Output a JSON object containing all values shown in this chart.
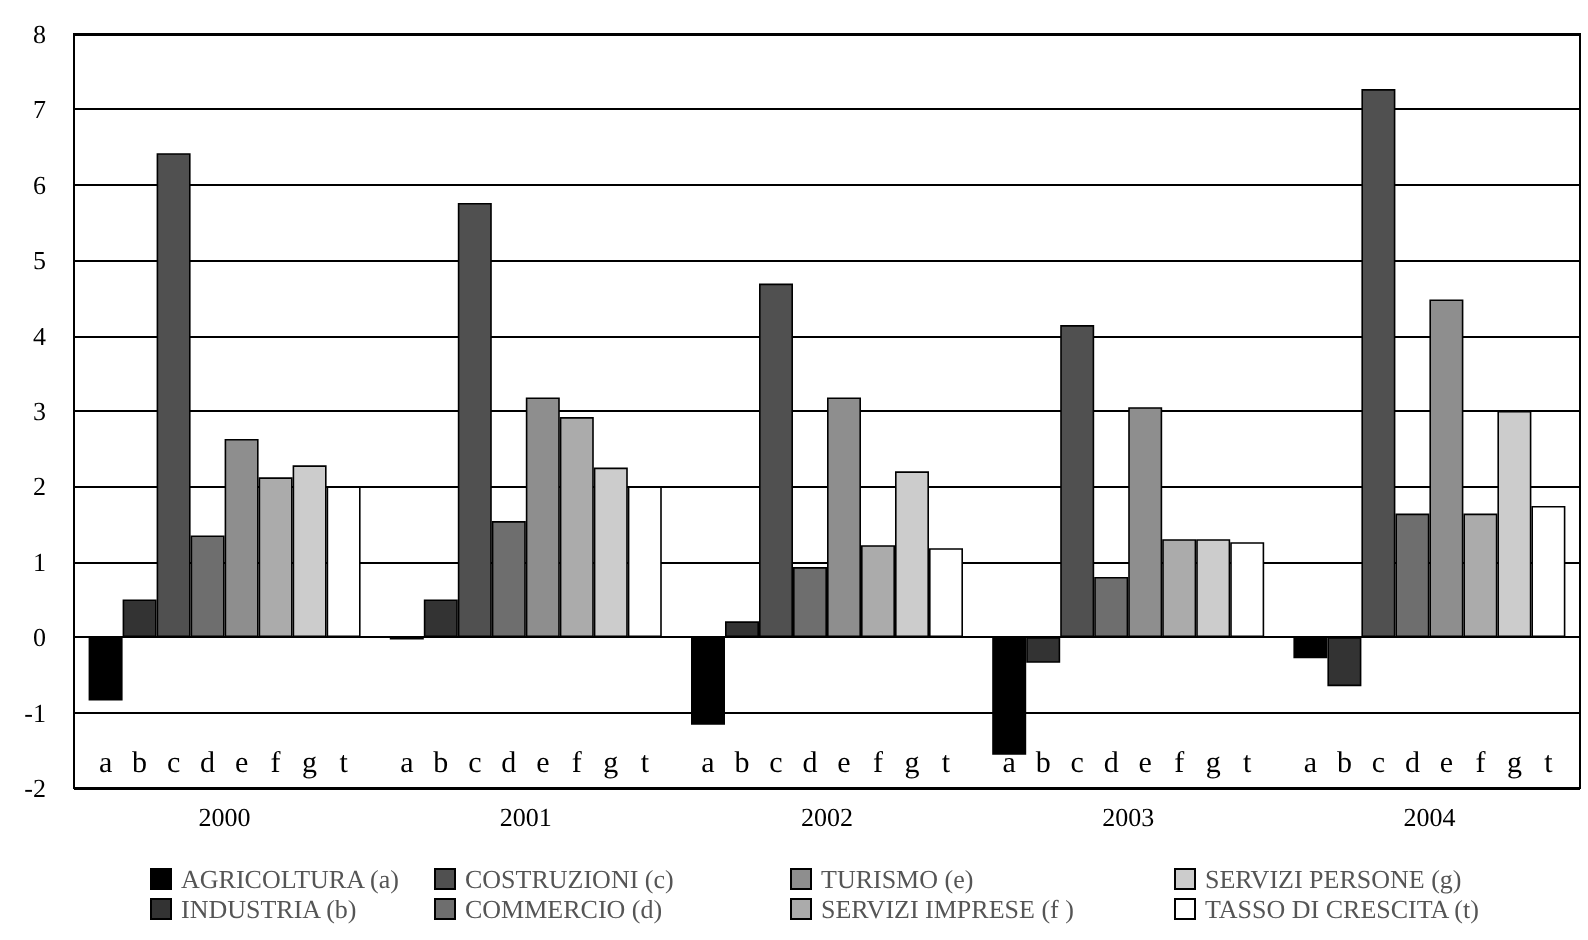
{
  "chart_data": {
    "type": "bar",
    "categories": [
      "2000",
      "2001",
      "2002",
      "2003",
      "2004"
    ],
    "series": [
      {
        "name": "AGRICOLTURA (a)",
        "color": "#000000",
        "values": [
          -0.84,
          -0.03,
          -1.16,
          -1.56,
          -0.28
        ]
      },
      {
        "name": "INDUSTRIA (b)",
        "color": "#333333",
        "values": [
          0.5,
          0.5,
          0.21,
          -0.34,
          -0.65
        ]
      },
      {
        "name": "COSTRUZIONI (c)",
        "color": "#505050",
        "values": [
          6.42,
          5.76,
          4.69,
          4.14,
          7.27
        ]
      },
      {
        "name": "COMMERCIO (d)",
        "color": "#6e6e6e",
        "values": [
          1.35,
          1.54,
          0.93,
          0.8,
          1.64
        ]
      },
      {
        "name": "TURISMO (e)",
        "color": "#8e8e8e",
        "values": [
          2.63,
          3.18,
          3.18,
          3.05,
          4.48
        ]
      },
      {
        "name": "SERVIZI IMPRESE (f )",
        "color": "#ababab",
        "values": [
          2.12,
          2.92,
          1.22,
          1.3,
          1.64
        ]
      },
      {
        "name": "SERVIZI PERSONE (g)",
        "color": "#cccccc",
        "values": [
          2.28,
          2.25,
          2.2,
          1.3,
          3.0
        ]
      },
      {
        "name": "TASSO DI CRESCITA (t)",
        "color": "#ffffff",
        "values": [
          2.0,
          2.0,
          1.18,
          1.26,
          1.74
        ]
      }
    ],
    "ylim": [
      -2,
      8
    ],
    "yticks": [
      -2,
      -1,
      0,
      1,
      2,
      3,
      4,
      5,
      6,
      7,
      8
    ],
    "grid": "y",
    "legend": "bottom",
    "annotations": [
      "a",
      "b",
      "c",
      "d",
      "e",
      "f",
      "g",
      "t",
      "a",
      "b",
      "c",
      "d",
      "e",
      "f",
      "g",
      "t",
      "a",
      "b",
      "c",
      "d",
      "e",
      "f",
      "g",
      "t",
      "a",
      "b",
      "c",
      "d",
      "e",
      "f",
      "g",
      "t",
      "a",
      "b",
      "c",
      "d",
      "e",
      "f",
      "g",
      "t"
    ]
  }
}
